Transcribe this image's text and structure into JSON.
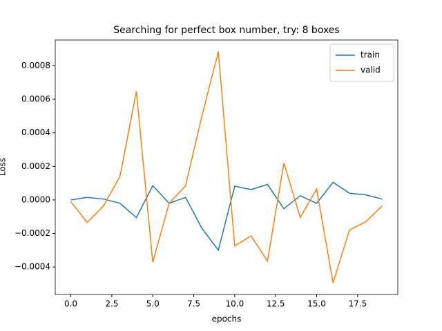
{
  "chart_data": {
    "type": "line",
    "title": "Searching for perfect box number, try: 8 boxes",
    "x_label": "epochs",
    "y_label": "Loss",
    "x": [
      0,
      1,
      2,
      3,
      4,
      5,
      6,
      7,
      8,
      9,
      10,
      11,
      12,
      13,
      14,
      15,
      16,
      17,
      18,
      19
    ],
    "series": [
      {
        "name": "train",
        "color": "#1f77b4",
        "values": [
          0,
          1.5e-05,
          5e-06,
          -2e-05,
          -0.000105,
          8.5e-05,
          -2e-05,
          1.5e-05,
          -0.00017,
          -0.0003,
          8.2e-05,
          6.2e-05,
          9.2e-05,
          -5.2e-05,
          2.5e-05,
          -2e-05,
          0.000105,
          4e-05,
          3e-05,
          5e-06
        ]
      },
      {
        "name": "valid",
        "color": "#ff7f0e",
        "values": [
          -1e-05,
          -0.000135,
          -3.5e-05,
          0.00014,
          0.000648,
          -0.000372,
          -2e-05,
          8.5e-05,
          0.0005,
          0.000885,
          -0.000275,
          -0.000215,
          -0.000365,
          0.00022,
          -0.000105,
          6.5e-05,
          -0.000495,
          -0.00018,
          -0.00013,
          -3.5e-05
        ]
      }
    ],
    "xlim": [
      -0.95,
      19.95
    ],
    "ylim": [
      -0.000564,
      0.000954
    ],
    "xticks": [
      {
        "value": 0,
        "label": "0.0"
      },
      2.5,
      {
        "value": 5,
        "label": "5.0"
      },
      7.5,
      {
        "value": 10,
        "label": "10.0"
      },
      12.5,
      {
        "value": 15,
        "label": "15.0"
      },
      17.5
    ],
    "yticks": [
      {
        "value": -0.0004,
        "label": "−0.0004"
      },
      {
        "value": -0.0002,
        "label": "−0.0002"
      },
      {
        "value": 0,
        "label": "0.0000"
      },
      {
        "value": 0.0002,
        "label": "0.0002"
      },
      {
        "value": 0.0004,
        "label": "0.0004"
      },
      {
        "value": 0.0006,
        "label": "0.0006"
      },
      {
        "value": 0.0008,
        "label": "0.0008"
      }
    ],
    "legend": "upper right"
  }
}
